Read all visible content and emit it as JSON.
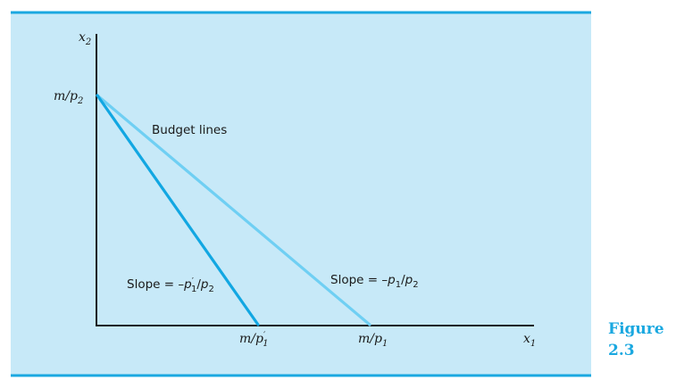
{
  "figure": {
    "caption_word": "Figure",
    "caption_number": "2.3"
  },
  "axes": {
    "y_label_base": "x",
    "y_label_sub": "2",
    "x_label_base": "x",
    "x_label_sub": "1"
  },
  "labels": {
    "y_intercept": {
      "text": "m/p",
      "sub": "2"
    },
    "x_intercept_new": {
      "text": "m/p",
      "sup": "′",
      "sub": "1"
    },
    "x_intercept_orig": {
      "text": "m/p",
      "sub": "1"
    },
    "budget_lines": "Budget lines",
    "slope_new": {
      "prefix": "Slope = –",
      "p1": "p",
      "p1_sup": "′",
      "p1_sub": "1",
      "slash": "/",
      "p2": "p",
      "p2_sub": "2"
    },
    "slope_orig": {
      "prefix": "Slope = –",
      "p1": "p",
      "p1_sub": "1",
      "slash": "/",
      "p2": "p",
      "p2_sub": "2"
    }
  },
  "colors": {
    "panel": "#c7e9f8",
    "rule": "#1aa8e0",
    "steep_line": "#12a7e2",
    "flat_line": "#6fcff3",
    "caption": "#1aa8e0"
  }
}
